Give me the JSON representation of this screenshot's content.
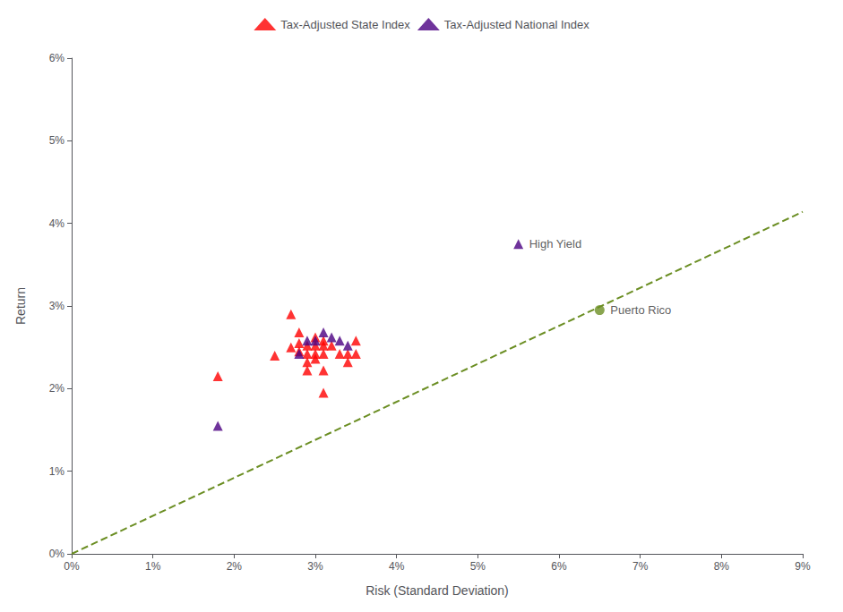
{
  "chart_data": {
    "type": "scatter",
    "xlabel": "Risk (Standard Deviation)",
    "ylabel": "Return",
    "xlim": [
      0,
      0.09
    ],
    "ylim": [
      0,
      0.06
    ],
    "xticks": [
      {
        "value": 0.0,
        "label": "0%"
      },
      {
        "value": 0.01,
        "label": "1%"
      },
      {
        "value": 0.02,
        "label": "2%"
      },
      {
        "value": 0.03,
        "label": "3%"
      },
      {
        "value": 0.04,
        "label": "4%"
      },
      {
        "value": 0.05,
        "label": "5%"
      },
      {
        "value": 0.06,
        "label": "6%"
      },
      {
        "value": 0.07,
        "label": "7%"
      },
      {
        "value": 0.08,
        "label": "8%"
      },
      {
        "value": 0.09,
        "label": "9%"
      }
    ],
    "yticks": [
      {
        "value": 0.0,
        "label": "0%"
      },
      {
        "value": 0.01,
        "label": "1%"
      },
      {
        "value": 0.02,
        "label": "2%"
      },
      {
        "value": 0.03,
        "label": "3%"
      },
      {
        "value": 0.04,
        "label": "4%"
      },
      {
        "value": 0.05,
        "label": "5%"
      },
      {
        "value": 0.06,
        "label": "6%"
      }
    ],
    "grid": false,
    "legend": "top",
    "series": [
      {
        "type": "line",
        "line_style": "dashed",
        "color": "#6B8E23",
        "values": [
          [
            0.0,
            0.0
          ],
          [
            0.09,
            0.0414
          ]
        ]
      },
      {
        "name": "Tax-Adjusted State Index",
        "type": "scatter",
        "marker": "triangle",
        "color": "#FF0000",
        "values": [
          [
            0.018,
            0.0215
          ],
          [
            0.025,
            0.024
          ],
          [
            0.027,
            0.029
          ],
          [
            0.027,
            0.025
          ],
          [
            0.028,
            0.0268
          ],
          [
            0.028,
            0.0255
          ],
          [
            0.028,
            0.0245
          ],
          [
            0.029,
            0.0242
          ],
          [
            0.029,
            0.0252
          ],
          [
            0.029,
            0.0232
          ],
          [
            0.029,
            0.0222
          ],
          [
            0.03,
            0.0262
          ],
          [
            0.03,
            0.0252
          ],
          [
            0.03,
            0.0242
          ],
          [
            0.03,
            0.0236
          ],
          [
            0.031,
            0.0258
          ],
          [
            0.031,
            0.0252
          ],
          [
            0.031,
            0.0242
          ],
          [
            0.031,
            0.0222
          ],
          [
            0.031,
            0.0195
          ],
          [
            0.032,
            0.0252
          ],
          [
            0.033,
            0.0242
          ],
          [
            0.034,
            0.0242
          ],
          [
            0.034,
            0.0232
          ],
          [
            0.035,
            0.0258
          ],
          [
            0.035,
            0.0242
          ]
        ]
      },
      {
        "name": "Tax-Adjusted National Index",
        "type": "scatter",
        "marker": "triangle",
        "color": "#4B0082",
        "values": [
          [
            0.028,
            0.0242
          ],
          [
            0.029,
            0.0258
          ],
          [
            0.03,
            0.0258
          ],
          [
            0.031,
            0.0268
          ],
          [
            0.032,
            0.0262
          ],
          [
            0.033,
            0.0258
          ],
          [
            0.034,
            0.0252
          ],
          [
            0.018,
            0.0155
          ],
          [
            0.055,
            0.0375
          ]
        ]
      },
      {
        "type": "scatter",
        "marker": "circle",
        "color": "#6B8E23",
        "values": [
          [
            0.065,
            0.0295
          ]
        ]
      }
    ],
    "annotations": [
      {
        "text": "High Yield",
        "x": 0.055,
        "y": 0.0375
      },
      {
        "text": "Puerto Rico",
        "x": 0.065,
        "y": 0.0295
      }
    ]
  }
}
